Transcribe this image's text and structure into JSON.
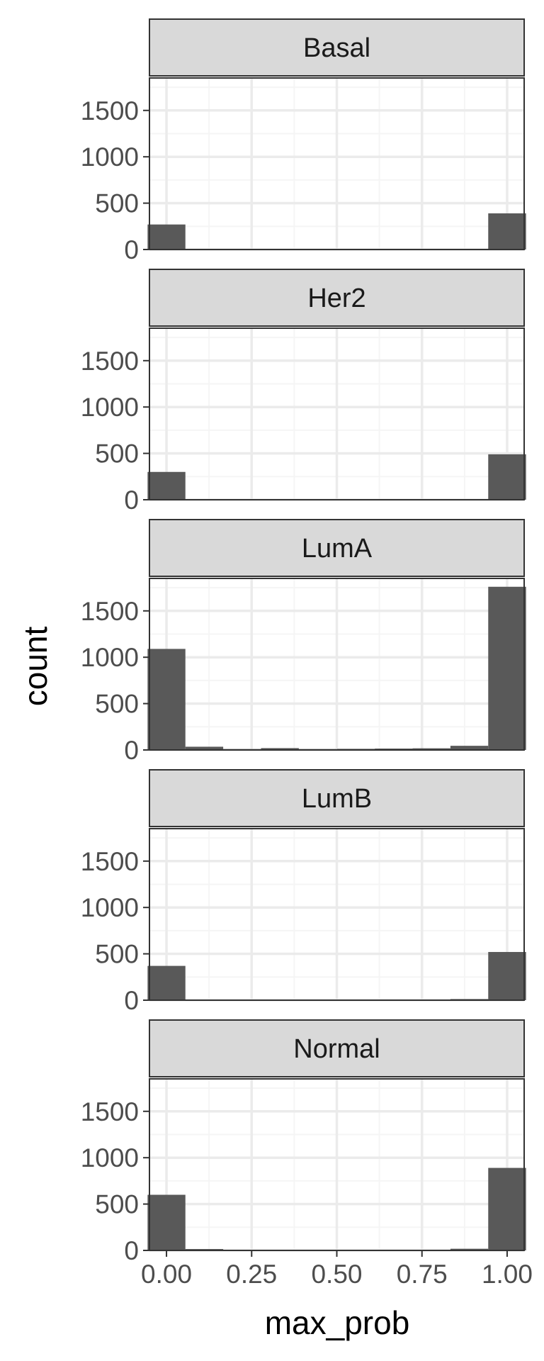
{
  "chart_data": {
    "type": "bar",
    "xlabel": "max_prob",
    "ylabel": "count",
    "xlim": [
      -0.05,
      1.05
    ],
    "ylim": [
      0,
      1850
    ],
    "x_ticks": [
      "0.00",
      "0.25",
      "0.50",
      "0.75",
      "1.00"
    ],
    "y_ticks": [
      "0",
      "500",
      "1000",
      "1500"
    ],
    "bin_centers": [
      0.0,
      0.111,
      0.222,
      0.333,
      0.444,
      0.556,
      0.667,
      0.778,
      0.889,
      1.0
    ],
    "bin_width": 0.111,
    "grid": true,
    "panels": [
      {
        "name": "Basal",
        "values": [
          270,
          5,
          5,
          0,
          0,
          0,
          4,
          4,
          5,
          390
        ]
      },
      {
        "name": "Her2",
        "values": [
          300,
          4,
          4,
          4,
          0,
          4,
          0,
          4,
          6,
          490
        ]
      },
      {
        "name": "LumA",
        "values": [
          1090,
          35,
          10,
          20,
          10,
          12,
          15,
          18,
          45,
          1760
        ]
      },
      {
        "name": "LumB",
        "values": [
          370,
          5,
          5,
          5,
          5,
          0,
          0,
          6,
          12,
          520
        ]
      },
      {
        "name": "Normal",
        "values": [
          600,
          15,
          6,
          4,
          4,
          0,
          6,
          0,
          18,
          890
        ]
      }
    ],
    "colors": {
      "bar": "#595959",
      "strip_fill": "#d9d9d9",
      "grid_major": "#ebebeb",
      "grid_minor": "#f5f5f5",
      "frame": "#333333"
    }
  }
}
